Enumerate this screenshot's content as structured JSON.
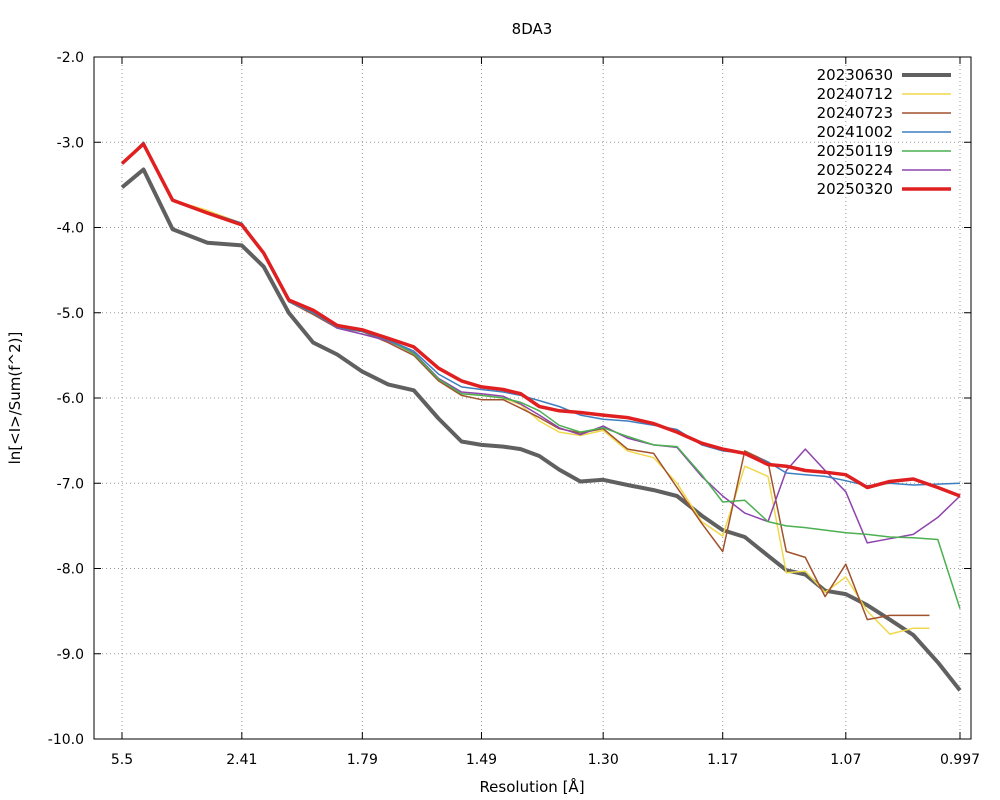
{
  "chart_data": {
    "type": "line",
    "title": "8DA3",
    "xlabel": "Resolution [Å]",
    "ylabel": "ln[<I>/Sum(f^2)]",
    "x_scale": "1/d^2",
    "xlim": [
      5.5,
      0.997
    ],
    "ylim": [
      -10.0,
      -2.0
    ],
    "x_ticks": [
      5.5,
      2.41,
      1.79,
      1.49,
      1.3,
      1.17,
      1.07,
      0.997
    ],
    "x_tick_labels": [
      "5.5",
      "2.41",
      "1.79",
      "1.49",
      "1.30",
      "1.17",
      "1.07",
      "0.997"
    ],
    "y_ticks": [
      -2,
      -3,
      -4,
      -5,
      -6,
      -7,
      -8,
      -9,
      -10
    ],
    "y_tick_labels": [
      "-2.0",
      "-3.0",
      "-4.0",
      "-5.0",
      "-6.0",
      "-7.0",
      "-8.0",
      "-9.0",
      "-10.0"
    ],
    "grid": true,
    "legend_position": "top-right",
    "series": [
      {
        "name": "20230630",
        "color": "#606060",
        "x": [
          5.5,
          4.15,
          3.3,
          2.75,
          2.41,
          2.25,
          2.1,
          1.98,
          1.88,
          1.79,
          1.71,
          1.64,
          1.58,
          1.53,
          1.49,
          1.45,
          1.42,
          1.39,
          1.36,
          1.33,
          1.3,
          1.27,
          1.24,
          1.215,
          1.19,
          1.17,
          1.15,
          1.13,
          1.115,
          1.1,
          1.085,
          1.07,
          1.055,
          1.04,
          1.025,
          1.01,
          0.997
        ],
        "y": [
          -3.53,
          -3.32,
          -4.02,
          -4.18,
          -4.21,
          -4.46,
          -5.0,
          -5.35,
          -5.49,
          -5.69,
          -5.84,
          -5.91,
          -6.24,
          -6.51,
          -6.55,
          -6.57,
          -6.6,
          -6.68,
          -6.84,
          -6.98,
          -6.96,
          -7.02,
          -7.08,
          -7.15,
          -7.38,
          -7.55,
          -7.63,
          -7.85,
          -8.02,
          -8.07,
          -8.26,
          -8.3,
          -8.43,
          -8.6,
          -8.78,
          -9.1,
          -9.43
        ]
      },
      {
        "name": "20240712",
        "color": "#f0d84c",
        "x": [
          5.5,
          4.15,
          3.3,
          2.75,
          2.41,
          2.25,
          2.1,
          1.98,
          1.88,
          1.79,
          1.71,
          1.64,
          1.58,
          1.53,
          1.49,
          1.45,
          1.42,
          1.39,
          1.36,
          1.33,
          1.3,
          1.27,
          1.24,
          1.215,
          1.19,
          1.17,
          1.15,
          1.13,
          1.115,
          1.1,
          1.085,
          1.07,
          1.055,
          1.04,
          1.025,
          1.015
        ],
        "y": [
          -3.25,
          -3.0,
          -3.68,
          -3.8,
          -3.95,
          -4.3,
          -4.85,
          -5.0,
          -5.15,
          -5.2,
          -5.32,
          -5.48,
          -5.78,
          -5.95,
          -5.97,
          -6.0,
          -6.08,
          -6.27,
          -6.4,
          -6.44,
          -6.38,
          -6.62,
          -6.7,
          -7.0,
          -7.45,
          -7.62,
          -6.8,
          -6.92,
          -8.05,
          -8.03,
          -8.28,
          -8.1,
          -8.5,
          -8.77,
          -8.7,
          -8.7
        ]
      },
      {
        "name": "20240723",
        "color": "#a0522d",
        "x": [
          5.5,
          4.15,
          3.3,
          2.75,
          2.41,
          2.25,
          2.1,
          1.98,
          1.88,
          1.79,
          1.71,
          1.64,
          1.58,
          1.53,
          1.49,
          1.45,
          1.42,
          1.39,
          1.36,
          1.33,
          1.3,
          1.27,
          1.24,
          1.215,
          1.19,
          1.17,
          1.15,
          1.13,
          1.115,
          1.1,
          1.085,
          1.07,
          1.055,
          1.04,
          1.025,
          1.015
        ],
        "y": [
          -3.25,
          -3.0,
          -3.68,
          -3.82,
          -3.95,
          -4.3,
          -4.87,
          -5.02,
          -5.18,
          -5.22,
          -5.35,
          -5.5,
          -5.8,
          -5.97,
          -6.02,
          -6.02,
          -6.12,
          -6.23,
          -6.36,
          -6.41,
          -6.36,
          -6.6,
          -6.65,
          -7.05,
          -7.47,
          -7.8,
          -6.62,
          -6.75,
          -7.8,
          -7.87,
          -8.33,
          -7.95,
          -8.6,
          -8.55,
          -8.55,
          -8.55
        ]
      },
      {
        "name": "20241002",
        "color": "#3c7fc0",
        "x": [
          5.5,
          4.15,
          3.3,
          2.75,
          2.41,
          2.25,
          2.1,
          1.98,
          1.88,
          1.79,
          1.71,
          1.64,
          1.58,
          1.53,
          1.49,
          1.45,
          1.42,
          1.39,
          1.36,
          1.33,
          1.3,
          1.27,
          1.24,
          1.215,
          1.19,
          1.17,
          1.15,
          1.13,
          1.115,
          1.1,
          1.085,
          1.07,
          1.055,
          1.04,
          1.025,
          1.01,
          0.997
        ],
        "y": [
          -3.25,
          -3.0,
          -3.68,
          -3.82,
          -3.95,
          -4.3,
          -4.87,
          -5.0,
          -5.17,
          -5.22,
          -5.32,
          -5.45,
          -5.72,
          -5.87,
          -5.9,
          -5.93,
          -5.97,
          -6.03,
          -6.1,
          -6.2,
          -6.25,
          -6.27,
          -6.32,
          -6.37,
          -6.55,
          -6.62,
          -6.65,
          -6.75,
          -6.88,
          -6.9,
          -6.92,
          -6.97,
          -7.03,
          -7.0,
          -7.02,
          -7.01,
          -7.0
        ]
      },
      {
        "name": "20250119",
        "color": "#4caf50",
        "x": [
          5.5,
          4.15,
          3.3,
          2.75,
          2.41,
          2.25,
          2.1,
          1.98,
          1.88,
          1.79,
          1.71,
          1.64,
          1.58,
          1.53,
          1.49,
          1.45,
          1.42,
          1.39,
          1.36,
          1.33,
          1.3,
          1.27,
          1.24,
          1.215,
          1.19,
          1.17,
          1.15,
          1.13,
          1.115,
          1.1,
          1.085,
          1.07,
          1.055,
          1.04,
          1.025,
          1.01,
          0.997
        ],
        "y": [
          -3.25,
          -3.0,
          -3.68,
          -3.82,
          -3.95,
          -4.3,
          -4.87,
          -5.0,
          -5.17,
          -5.22,
          -5.32,
          -5.48,
          -5.78,
          -5.95,
          -5.97,
          -6.0,
          -6.05,
          -6.15,
          -6.32,
          -6.4,
          -6.35,
          -6.45,
          -6.55,
          -6.57,
          -6.9,
          -7.22,
          -7.2,
          -7.45,
          -7.5,
          -7.52,
          -7.55,
          -7.58,
          -7.6,
          -7.63,
          -7.64,
          -7.66,
          -8.47
        ]
      },
      {
        "name": "20250224",
        "color": "#8e44ad",
        "x": [
          5.5,
          4.15,
          3.3,
          2.75,
          2.41,
          2.25,
          2.1,
          1.98,
          1.88,
          1.79,
          1.71,
          1.64,
          1.58,
          1.53,
          1.49,
          1.45,
          1.42,
          1.39,
          1.36,
          1.33,
          1.3,
          1.27,
          1.24,
          1.215,
          1.19,
          1.17,
          1.15,
          1.13,
          1.115,
          1.1,
          1.085,
          1.07,
          1.055,
          1.04,
          1.025,
          1.01,
          0.997
        ],
        "y": [
          -3.25,
          -3.0,
          -3.68,
          -3.82,
          -3.95,
          -4.3,
          -4.87,
          -5.0,
          -5.18,
          -5.25,
          -5.33,
          -5.47,
          -5.77,
          -5.93,
          -5.95,
          -5.98,
          -6.07,
          -6.2,
          -6.35,
          -6.43,
          -6.33,
          -6.47,
          -6.55,
          -6.58,
          -6.92,
          -7.15,
          -7.35,
          -7.45,
          -6.85,
          -6.6,
          -6.85,
          -7.1,
          -7.7,
          -7.65,
          -7.6,
          -7.4,
          -7.15
        ]
      },
      {
        "name": "20250320",
        "color": "#e02020",
        "x": [
          5.5,
          4.15,
          3.3,
          2.75,
          2.41,
          2.25,
          2.1,
          1.98,
          1.88,
          1.79,
          1.71,
          1.64,
          1.58,
          1.53,
          1.49,
          1.45,
          1.42,
          1.39,
          1.36,
          1.33,
          1.3,
          1.27,
          1.24,
          1.215,
          1.19,
          1.17,
          1.15,
          1.13,
          1.115,
          1.1,
          1.085,
          1.07,
          1.055,
          1.04,
          1.025,
          1.01,
          0.997
        ],
        "y": [
          -3.25,
          -3.02,
          -3.68,
          -3.83,
          -3.97,
          -4.3,
          -4.85,
          -4.97,
          -5.15,
          -5.2,
          -5.3,
          -5.4,
          -5.65,
          -5.8,
          -5.87,
          -5.9,
          -5.95,
          -6.1,
          -6.15,
          -6.17,
          -6.2,
          -6.23,
          -6.3,
          -6.4,
          -6.53,
          -6.6,
          -6.65,
          -6.78,
          -6.8,
          -6.85,
          -6.87,
          -6.9,
          -7.05,
          -6.98,
          -6.95,
          -7.05,
          -7.15
        ]
      }
    ]
  }
}
